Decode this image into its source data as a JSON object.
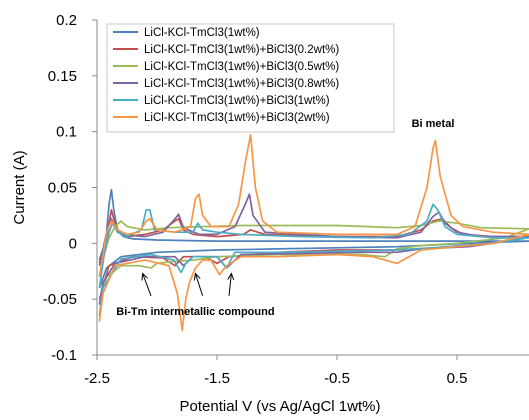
{
  "chart_data": {
    "type": "line",
    "title": "",
    "xlabel": "Potential V (vs Ag/AgCl 1wt%)",
    "ylabel": "Current (A)",
    "xlim": [
      -2.5,
      1.1
    ],
    "ylim": [
      -0.1,
      0.2
    ],
    "x_ticks": [
      -2.5,
      -1.5,
      -0.5,
      0.5
    ],
    "x_tick_labels": [
      "-2.5",
      "-1.5",
      "-0.5",
      "0.5"
    ],
    "y_ticks": [
      -0.1,
      -0.05,
      0,
      0.05,
      0.1,
      0.15,
      0.2
    ],
    "y_tick_labels": [
      "-0.1",
      "-0.05",
      "0",
      "0.05",
      "0.1",
      "0.15",
      "0.2"
    ],
    "grid": false,
    "legend_position": "top-left",
    "annotations": [
      {
        "text": "Bi metal",
        "x": 0.3,
        "y": 0.104
      },
      {
        "text": "Bi-Tm intermetallic compound",
        "x": -1.68,
        "y": -0.064
      }
    ],
    "arrows": [
      {
        "from": [
          -2.05,
          -0.047
        ],
        "to": [
          -2.12,
          -0.027
        ]
      },
      {
        "from": [
          -1.62,
          -0.047
        ],
        "to": [
          -1.68,
          -0.027
        ]
      },
      {
        "from": [
          -1.4,
          -0.047
        ],
        "to": [
          -1.38,
          -0.027
        ]
      }
    ],
    "series": [
      {
        "name": "LiCl-KCl-TmCl3(1wt%)",
        "color": "#4f81bd",
        "points": [
          [
            -2.48,
            -0.015
          ],
          [
            -2.45,
            -0.005
          ],
          [
            -2.42,
            0.01
          ],
          [
            -2.4,
            0.035
          ],
          [
            -2.38,
            0.048
          ],
          [
            -2.36,
            0.03
          ],
          [
            -2.33,
            0.012
          ],
          [
            -2.28,
            0.006
          ],
          [
            -2.2,
            0.004
          ],
          [
            -2.0,
            0.003
          ],
          [
            -1.5,
            0.002
          ],
          [
            -1.0,
            0.002
          ],
          [
            -0.5,
            0.002
          ],
          [
            0.0,
            0.002
          ],
          [
            0.5,
            0.002
          ],
          [
            1.1,
            0.002
          ],
          [
            0.6,
            0.0
          ],
          [
            0.0,
            -0.003
          ],
          [
            -0.5,
            -0.004
          ],
          [
            -1.0,
            -0.005
          ],
          [
            -1.5,
            -0.006
          ],
          [
            -2.0,
            -0.008
          ],
          [
            -2.3,
            -0.012
          ],
          [
            -2.42,
            -0.022
          ],
          [
            -2.48,
            -0.04
          ]
        ]
      },
      {
        "name": "LiCl-KCl-TmCl3(1wt%)+BiCl3(0.2wt%)",
        "color": "#c0504d",
        "points": [
          [
            -2.48,
            -0.018
          ],
          [
            -2.44,
            -0.004
          ],
          [
            -2.41,
            0.012
          ],
          [
            -2.38,
            0.03
          ],
          [
            -2.36,
            0.022
          ],
          [
            -2.32,
            0.01
          ],
          [
            -2.25,
            0.006
          ],
          [
            -2.1,
            0.008
          ],
          [
            -1.95,
            0.012
          ],
          [
            -1.85,
            0.02
          ],
          [
            -1.82,
            0.022
          ],
          [
            -1.78,
            0.012
          ],
          [
            -1.7,
            0.008
          ],
          [
            -1.5,
            0.006
          ],
          [
            -1.28,
            0.008
          ],
          [
            -1.22,
            0.012
          ],
          [
            -1.1,
            0.008
          ],
          [
            -0.5,
            0.006
          ],
          [
            0.0,
            0.006
          ],
          [
            0.2,
            0.012
          ],
          [
            0.3,
            0.02
          ],
          [
            0.38,
            0.022
          ],
          [
            0.45,
            0.014
          ],
          [
            0.55,
            0.008
          ],
          [
            0.8,
            0.006
          ],
          [
            1.1,
            0.006
          ],
          [
            0.8,
            0.0
          ],
          [
            0.3,
            -0.004
          ],
          [
            0.0,
            -0.006
          ],
          [
            -0.5,
            -0.006
          ],
          [
            -1.0,
            -0.008
          ],
          [
            -1.4,
            -0.012
          ],
          [
            -1.5,
            -0.018
          ],
          [
            -1.6,
            -0.012
          ],
          [
            -1.78,
            -0.012
          ],
          [
            -1.85,
            -0.02
          ],
          [
            -1.95,
            -0.013
          ],
          [
            -2.2,
            -0.012
          ],
          [
            -2.4,
            -0.02
          ],
          [
            -2.48,
            -0.05
          ]
        ]
      },
      {
        "name": "LiCl-KCl-TmCl3(1wt%)+BiCl3(0.5wt%)",
        "color": "#9bbb59",
        "points": [
          [
            -2.48,
            -0.03
          ],
          [
            -2.44,
            -0.01
          ],
          [
            -2.4,
            0.005
          ],
          [
            -2.35,
            0.015
          ],
          [
            -2.3,
            0.02
          ],
          [
            -2.25,
            0.015
          ],
          [
            -2.1,
            0.012
          ],
          [
            -1.9,
            0.014
          ],
          [
            -1.6,
            0.015
          ],
          [
            -1.3,
            0.016
          ],
          [
            -1.0,
            0.016
          ],
          [
            -0.5,
            0.016
          ],
          [
            0.0,
            0.014
          ],
          [
            0.2,
            0.016
          ],
          [
            0.35,
            0.02
          ],
          [
            0.5,
            0.018
          ],
          [
            0.7,
            0.014
          ],
          [
            1.1,
            0.013
          ],
          [
            0.9,
            0.005
          ],
          [
            0.5,
            0.0
          ],
          [
            0.2,
            -0.002
          ],
          [
            0.0,
            -0.005
          ],
          [
            -0.1,
            -0.012
          ],
          [
            -0.3,
            -0.01
          ],
          [
            -0.5,
            -0.01
          ],
          [
            -1.0,
            -0.01
          ],
          [
            -1.5,
            -0.012
          ],
          [
            -1.7,
            -0.015
          ],
          [
            -1.85,
            -0.016
          ],
          [
            -2.0,
            -0.018
          ],
          [
            -2.05,
            -0.022
          ],
          [
            -2.15,
            -0.02
          ],
          [
            -2.3,
            -0.02
          ],
          [
            -2.42,
            -0.03
          ],
          [
            -2.48,
            -0.05
          ]
        ]
      },
      {
        "name": "LiCl-KCl-TmCl3(1wt%)+BiCl3(0.8wt%)",
        "color": "#8064a2",
        "points": [
          [
            -2.48,
            -0.02
          ],
          [
            -2.44,
            -0.005
          ],
          [
            -2.41,
            0.012
          ],
          [
            -2.38,
            0.022
          ],
          [
            -2.35,
            0.015
          ],
          [
            -2.3,
            0.008
          ],
          [
            -2.1,
            0.006
          ],
          [
            -1.95,
            0.01
          ],
          [
            -1.85,
            0.022
          ],
          [
            -1.82,
            0.026
          ],
          [
            -1.78,
            0.014
          ],
          [
            -1.65,
            0.008
          ],
          [
            -1.5,
            0.008
          ],
          [
            -1.35,
            0.015
          ],
          [
            -1.26,
            0.036
          ],
          [
            -1.23,
            0.044
          ],
          [
            -1.2,
            0.025
          ],
          [
            -1.1,
            0.01
          ],
          [
            -0.5,
            0.006
          ],
          [
            0.0,
            0.005
          ],
          [
            0.2,
            0.01
          ],
          [
            0.3,
            0.024
          ],
          [
            0.35,
            0.028
          ],
          [
            0.4,
            0.018
          ],
          [
            0.5,
            0.01
          ],
          [
            0.7,
            0.006
          ],
          [
            1.1,
            0.006
          ],
          [
            0.8,
            0.0
          ],
          [
            0.6,
            -0.003
          ],
          [
            0.2,
            -0.005
          ],
          [
            0.0,
            -0.008
          ],
          [
            -0.3,
            -0.008
          ],
          [
            -0.8,
            -0.009
          ],
          [
            -1.3,
            -0.01
          ],
          [
            -1.42,
            -0.022
          ],
          [
            -1.5,
            -0.012
          ],
          [
            -1.7,
            -0.012
          ],
          [
            -1.78,
            -0.02
          ],
          [
            -1.85,
            -0.012
          ],
          [
            -2.1,
            -0.012
          ],
          [
            -2.35,
            -0.018
          ],
          [
            -2.45,
            -0.035
          ],
          [
            -2.48,
            -0.055
          ]
        ]
      },
      {
        "name": "LiCl-KCl-TmCl3(1wt%)+BiCl3(1wt%)",
        "color": "#4bacc6",
        "points": [
          [
            -2.48,
            -0.04
          ],
          [
            -2.44,
            -0.01
          ],
          [
            -2.4,
            0.01
          ],
          [
            -2.37,
            0.018
          ],
          [
            -2.33,
            0.01
          ],
          [
            -2.25,
            0.006
          ],
          [
            -2.13,
            0.012
          ],
          [
            -2.09,
            0.03
          ],
          [
            -2.06,
            0.03
          ],
          [
            -2.02,
            0.012
          ],
          [
            -1.85,
            0.01
          ],
          [
            -1.7,
            0.01
          ],
          [
            -1.66,
            0.018
          ],
          [
            -1.62,
            0.012
          ],
          [
            -1.5,
            0.01
          ],
          [
            -1.3,
            0.008
          ],
          [
            -0.8,
            0.006
          ],
          [
            -0.2,
            0.005
          ],
          [
            0.1,
            0.008
          ],
          [
            0.25,
            0.02
          ],
          [
            0.3,
            0.035
          ],
          [
            0.34,
            0.03
          ],
          [
            0.4,
            0.015
          ],
          [
            0.5,
            0.008
          ],
          [
            0.8,
            0.005
          ],
          [
            1.1,
            0.005
          ],
          [
            0.8,
            0.0
          ],
          [
            0.3,
            -0.004
          ],
          [
            0.0,
            -0.006
          ],
          [
            -0.5,
            -0.007
          ],
          [
            -1.0,
            -0.008
          ],
          [
            -1.35,
            -0.008
          ],
          [
            -1.42,
            -0.022
          ],
          [
            -1.5,
            -0.012
          ],
          [
            -1.7,
            -0.012
          ],
          [
            -1.76,
            -0.018
          ],
          [
            -1.8,
            -0.026
          ],
          [
            -1.86,
            -0.015
          ],
          [
            -2.05,
            -0.01
          ],
          [
            -2.3,
            -0.014
          ],
          [
            -2.45,
            -0.04
          ],
          [
            -2.48,
            -0.065
          ]
        ]
      },
      {
        "name": "LiCl-KCl-TmCl3(1wt%)+BiCl3(2wt%)",
        "color": "#f79646",
        "points": [
          [
            -2.48,
            -0.03
          ],
          [
            -2.45,
            -0.01
          ],
          [
            -2.42,
            0.01
          ],
          [
            -2.38,
            0.02
          ],
          [
            -2.33,
            0.012
          ],
          [
            -2.25,
            0.008
          ],
          [
            -2.15,
            0.01
          ],
          [
            -2.09,
            0.02
          ],
          [
            -2.06,
            0.022
          ],
          [
            -2.0,
            0.012
          ],
          [
            -1.85,
            0.01
          ],
          [
            -1.72,
            0.015
          ],
          [
            -1.68,
            0.04
          ],
          [
            -1.65,
            0.044
          ],
          [
            -1.62,
            0.025
          ],
          [
            -1.55,
            0.015
          ],
          [
            -1.4,
            0.015
          ],
          [
            -1.32,
            0.035
          ],
          [
            -1.26,
            0.075
          ],
          [
            -1.22,
            0.097
          ],
          [
            -1.18,
            0.05
          ],
          [
            -1.12,
            0.02
          ],
          [
            -1.0,
            0.01
          ],
          [
            -0.5,
            0.008
          ],
          [
            0.0,
            0.008
          ],
          [
            0.15,
            0.015
          ],
          [
            0.25,
            0.05
          ],
          [
            0.3,
            0.085
          ],
          [
            0.32,
            0.092
          ],
          [
            0.36,
            0.06
          ],
          [
            0.45,
            0.025
          ],
          [
            0.55,
            0.015
          ],
          [
            0.8,
            0.01
          ],
          [
            1.1,
            0.008
          ],
          [
            0.8,
            0.0
          ],
          [
            0.4,
            -0.004
          ],
          [
            0.2,
            -0.006
          ],
          [
            0.1,
            -0.012
          ],
          [
            0.0,
            -0.018
          ],
          [
            -0.2,
            -0.012
          ],
          [
            -0.5,
            -0.01
          ],
          [
            -1.0,
            -0.012
          ],
          [
            -1.3,
            -0.012
          ],
          [
            -1.42,
            -0.02
          ],
          [
            -1.48,
            -0.028
          ],
          [
            -1.55,
            -0.015
          ],
          [
            -1.62,
            -0.015
          ],
          [
            -1.68,
            -0.022
          ],
          [
            -1.73,
            -0.035
          ],
          [
            -1.76,
            -0.05
          ],
          [
            -1.79,
            -0.078
          ],
          [
            -1.83,
            -0.045
          ],
          [
            -1.9,
            -0.02
          ],
          [
            -2.1,
            -0.015
          ],
          [
            -2.35,
            -0.02
          ],
          [
            -2.45,
            -0.045
          ],
          [
            -2.48,
            -0.07
          ]
        ]
      }
    ]
  }
}
